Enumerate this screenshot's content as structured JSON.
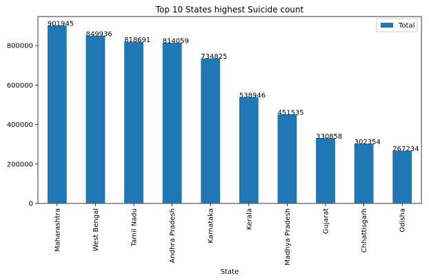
{
  "chart_data": {
    "type": "bar",
    "title": "Top 10 States highest Suicide count",
    "xlabel": "State",
    "ylabel": "",
    "categories": [
      "Maharashtra",
      "West Bengal",
      "Tamil Nadu",
      "Andhra Pradesh",
      "Karnataka",
      "Kerala",
      "Madhya Pradesh",
      "Gujarat",
      "Chhattisgarh",
      "Odisha"
    ],
    "series": [
      {
        "name": "Total",
        "values": [
          901945,
          849936,
          818691,
          814059,
          734825,
          538946,
          451535,
          330858,
          302354,
          267234
        ]
      }
    ],
    "ylim": [
      0,
      947042
    ],
    "yticks": [
      0,
      200000,
      400000,
      600000,
      800000
    ],
    "grid": false,
    "legend_position": "top-right",
    "colors": {
      "bar": "#1f77b4",
      "axis": "#000000",
      "legend_border": "#cccccc"
    }
  }
}
